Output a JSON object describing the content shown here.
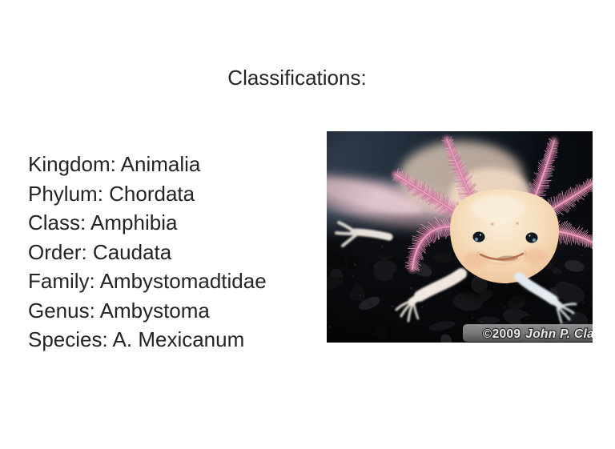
{
  "slide": {
    "title": "Classifications:",
    "classifications": [
      {
        "label": "Kingdom:",
        "value": "Animalia"
      },
      {
        "label": "Phylum:",
        "value": "Chordata"
      },
      {
        "label": "Class:",
        "value": "Amphibia"
      },
      {
        "label": "Order:",
        "value": "Caudata"
      },
      {
        "label": "Family:",
        "value": "Ambystomadtidae"
      },
      {
        "label": "Genus:",
        "value": "Ambystoma"
      },
      {
        "label": "Species:",
        "value": "A. Mexicanum"
      }
    ]
  },
  "photo": {
    "subject": "albino axolotl facing camera on dark gravel",
    "credit_year": "©2009",
    "credit_name": "John P. Cla",
    "colors": {
      "gill_pink": "#d4789e",
      "body_cream": "#f3d9b9",
      "background_dark": "#0a0b0d",
      "caption_bar": "#8a8a8a"
    }
  },
  "page": {
    "background": "#ffffff",
    "text_color": "#242424"
  }
}
